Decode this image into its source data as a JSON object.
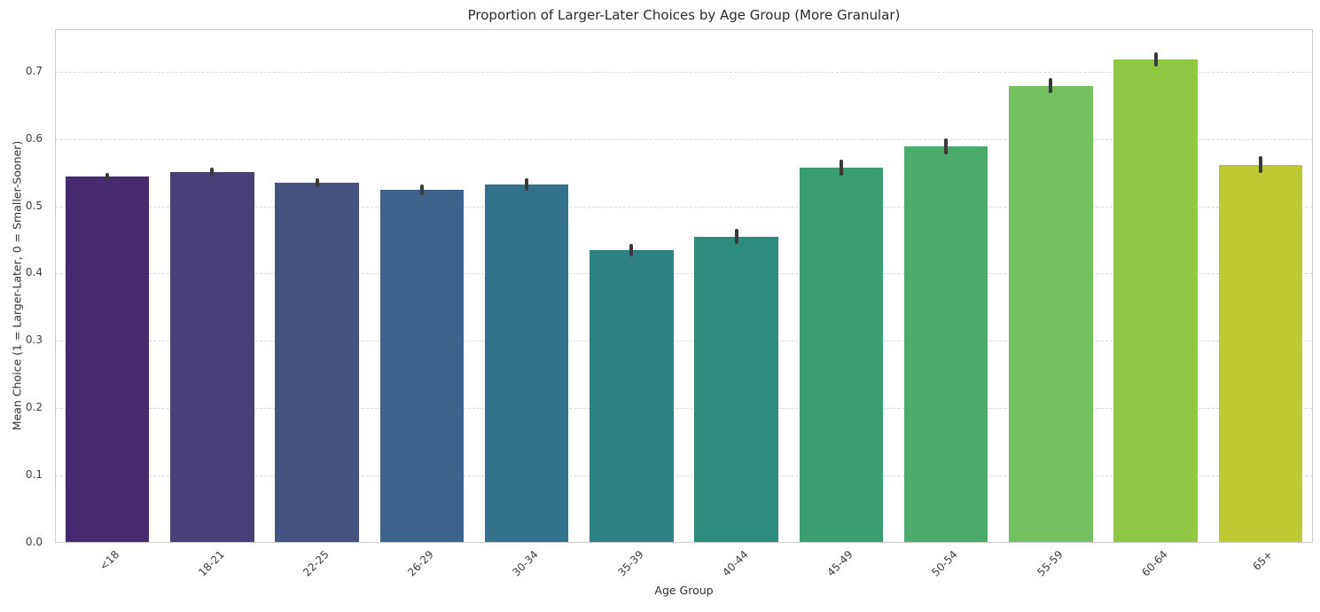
{
  "chart_data": {
    "type": "bar",
    "title": "Proportion of Larger-Later Choices by Age Group (More Granular)",
    "xlabel": "Age Group",
    "ylabel": "Mean Choice (1 = Larger-Later, 0 = Smaller-Sooner)",
    "categories": [
      "<18",
      "18-21",
      "22-25",
      "26-29",
      "30-34",
      "35-39",
      "40-44",
      "45-49",
      "50-54",
      "55-59",
      "60-64",
      "65+"
    ],
    "values": [
      0.544,
      0.551,
      0.535,
      0.524,
      0.532,
      0.435,
      0.455,
      0.557,
      0.589,
      0.679,
      0.718,
      0.562
    ],
    "error_margins": [
      0.006,
      0.006,
      0.007,
      0.008,
      0.009,
      0.009,
      0.011,
      0.012,
      0.012,
      0.011,
      0.011,
      0.013
    ],
    "bar_colors": [
      "#462b6e",
      "#4a4078",
      "#46527f",
      "#3c648a",
      "#34718a",
      "#2e8184",
      "#2e8c7d",
      "#3b9e73",
      "#4bab6a",
      "#73c05e",
      "#8fc842",
      "#bdc933"
    ],
    "yticks": [
      "0.0",
      "0.1",
      "0.2",
      "0.3",
      "0.4",
      "0.5",
      "0.6",
      "0.7"
    ],
    "ylim": [
      0,
      0.763
    ],
    "grid": "horizontal-dashed",
    "gridline_color": "#d9d9d9",
    "error_bar_color": "#3a3a3a",
    "background_color": "#ffffff",
    "legend": null
  }
}
